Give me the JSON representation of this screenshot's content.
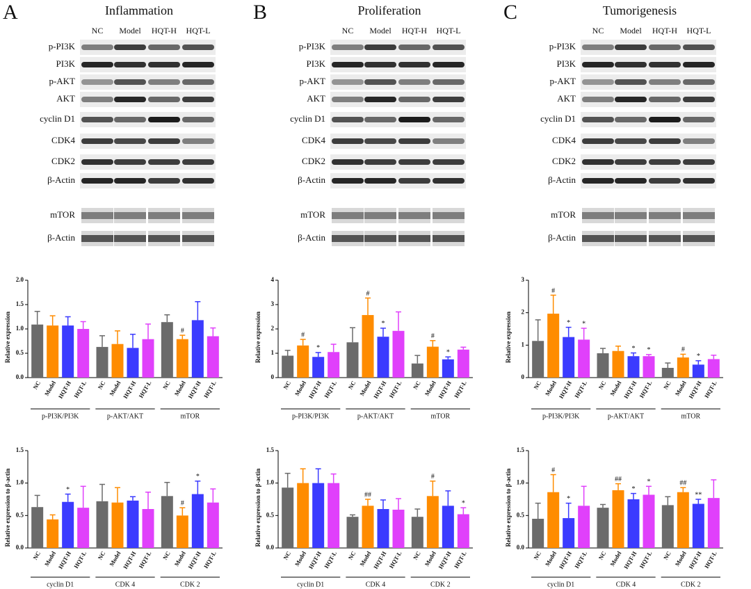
{
  "panels": [
    {
      "letter": "A",
      "title": "Inflammation",
      "lanes": [
        "NC",
        "Model",
        "HQT-H",
        "HQT-L"
      ],
      "blots": [
        "p-PI3K",
        "PI3K",
        "p-AKT",
        "AKT",
        "cyclin D1",
        "CDK4",
        "CDK2",
        "β-Actin"
      ],
      "blots2": [
        "mTOR",
        "β-Actin"
      ]
    },
    {
      "letter": "B",
      "title": "Proliferation",
      "lanes": [
        "NC",
        "Model",
        "HQT-H",
        "HQT-L"
      ],
      "blots": [
        "p-PI3K",
        "PI3K",
        "p-AKT",
        "AKT",
        "cyclin D1",
        "CDK4",
        "CDK2",
        "β-Actin"
      ],
      "blots2": [
        "mTOR",
        "β-Actin"
      ]
    },
    {
      "letter": "C",
      "title": "Tumorigenesis",
      "lanes": [
        "NC",
        "Model",
        "HQT-H",
        "HQT-L"
      ],
      "blots": [
        "p-PI3K",
        "PI3K",
        "p-AKT",
        "AKT",
        "cyclin D1",
        "CDK4",
        "CDK2",
        "β-Actin"
      ],
      "blots2": [
        "mTOR",
        "β-Actin"
      ]
    }
  ],
  "chart_data": [
    {
      "type": "bar",
      "y_label": "Relative expression",
      "categories": [
        "p-PI3K/PI3K",
        "p-AKT/AKT",
        "mTOR"
      ],
      "ylim": [
        0,
        2
      ],
      "yticks": [
        {
          "value": 0,
          "label": "0.0"
        },
        0.5,
        {
          "value": 1,
          "label": "1.0"
        },
        1.5,
        {
          "value": 2,
          "label": "2.0"
        }
      ],
      "series": [
        {
          "name": "NC",
          "color": "#6b6b6b",
          "values": [
            1.09,
            0.63,
            1.14
          ],
          "errors": [
            0.27,
            0.23,
            0.15
          ],
          "annotations": [
            null,
            null,
            null
          ]
        },
        {
          "name": "Model",
          "color": "#ff8c00",
          "values": [
            1.07,
            0.69,
            0.79
          ],
          "errors": [
            0.2,
            0.27,
            0.08
          ],
          "annotations": [
            null,
            null,
            "#"
          ]
        },
        {
          "name": "HQT-H",
          "color": "#3b3bff",
          "values": [
            1.07,
            0.61,
            1.18
          ],
          "errors": [
            0.18,
            0.28,
            0.38
          ],
          "annotations": [
            null,
            null,
            null
          ]
        },
        {
          "name": "HQT-L",
          "color": "#e040fb",
          "values": [
            1.0,
            0.79,
            0.85
          ],
          "errors": [
            0.15,
            0.31,
            0.17
          ],
          "annotations": [
            null,
            null,
            null
          ]
        }
      ]
    },
    {
      "type": "bar",
      "y_label": "Relative expression to β-actin",
      "categories": [
        "cyclin D1",
        "CDK 4",
        "CDK 2"
      ],
      "ylim": [
        0,
        1.5
      ],
      "yticks": [
        {
          "value": 0,
          "label": "0.0"
        },
        0.5,
        {
          "value": 1,
          "label": "1.0"
        },
        1.5
      ],
      "series": [
        {
          "name": "NC",
          "color": "#6b6b6b",
          "values": [
            0.63,
            0.72,
            0.8
          ],
          "errors": [
            0.18,
            0.26,
            0.21
          ],
          "annotations": [
            null,
            null,
            null
          ]
        },
        {
          "name": "Model",
          "color": "#ff8c00",
          "values": [
            0.44,
            0.7,
            0.5
          ],
          "errors": [
            0.07,
            0.23,
            0.12
          ],
          "annotations": [
            null,
            null,
            "#"
          ]
        },
        {
          "name": "HQT-H",
          "color": "#3b3bff",
          "values": [
            0.71,
            0.73,
            0.83
          ],
          "errors": [
            0.12,
            0.06,
            0.2
          ],
          "annotations": [
            "*",
            null,
            "*"
          ]
        },
        {
          "name": "HQT-L",
          "color": "#e040fb",
          "values": [
            0.62,
            0.6,
            0.7
          ],
          "errors": [
            0.33,
            0.26,
            0.21
          ],
          "annotations": [
            null,
            null,
            null
          ]
        }
      ]
    },
    {
      "type": "bar",
      "y_label": "Relative expression",
      "categories": [
        "p-PI3K/PI3K",
        "p-AKT/AKT",
        "mTOR"
      ],
      "ylim": [
        0,
        4
      ],
      "yticks": [
        0,
        1,
        2,
        3,
        4
      ],
      "series": [
        {
          "name": "NC",
          "color": "#6b6b6b",
          "values": [
            0.9,
            1.45,
            0.58
          ],
          "errors": [
            0.22,
            0.6,
            0.33
          ],
          "annotations": [
            null,
            null,
            null
          ]
        },
        {
          "name": "Model",
          "color": "#ff8c00",
          "values": [
            1.32,
            2.57,
            1.27
          ],
          "errors": [
            0.25,
            0.7,
            0.25
          ],
          "annotations": [
            "#",
            "#",
            "#"
          ]
        },
        {
          "name": "HQT-H",
          "color": "#3b3bff",
          "values": [
            0.85,
            1.68,
            0.75
          ],
          "errors": [
            0.18,
            0.35,
            0.1
          ],
          "annotations": [
            "*",
            "*",
            "*"
          ]
        },
        {
          "name": "HQT-L",
          "color": "#e040fb",
          "values": [
            1.05,
            1.92,
            1.15
          ],
          "errors": [
            0.32,
            0.78,
            0.1
          ],
          "annotations": [
            null,
            null,
            null
          ]
        }
      ]
    },
    {
      "type": "bar",
      "y_label": "Relative expression to β-actin",
      "categories": [
        "cyclin D1",
        "CDK 4",
        "CDK 2"
      ],
      "ylim": [
        0,
        1.5
      ],
      "yticks": [
        {
          "value": 0,
          "label": "0.0"
        },
        0.5,
        {
          "value": 1,
          "label": "1.0"
        },
        1.5
      ],
      "series": [
        {
          "name": "NC",
          "color": "#6b6b6b",
          "values": [
            0.93,
            0.48,
            0.48
          ],
          "errors": [
            0.22,
            0.03,
            0.12
          ],
          "annotations": [
            null,
            null,
            null
          ]
        },
        {
          "name": "Model",
          "color": "#ff8c00",
          "values": [
            1.0,
            0.65,
            0.8
          ],
          "errors": [
            0.22,
            0.1,
            0.23
          ],
          "annotations": [
            null,
            "##",
            "#"
          ]
        },
        {
          "name": "HQT-H",
          "color": "#3b3bff",
          "values": [
            1.0,
            0.6,
            0.65
          ],
          "errors": [
            0.22,
            0.14,
            0.23
          ],
          "annotations": [
            null,
            null,
            null
          ]
        },
        {
          "name": "HQT-L",
          "color": "#e040fb",
          "values": [
            1.0,
            0.59,
            0.52
          ],
          "errors": [
            0.14,
            0.17,
            0.1
          ],
          "annotations": [
            null,
            null,
            "*"
          ]
        }
      ]
    },
    {
      "type": "bar",
      "y_label": "Relative expression",
      "categories": [
        "p-PI3K/PI3K",
        "p-AKT/AKT",
        "mTOR"
      ],
      "ylim": [
        0,
        3
      ],
      "yticks": [
        0,
        1,
        2,
        3
      ],
      "series": [
        {
          "name": "NC",
          "color": "#6b6b6b",
          "values": [
            1.13,
            0.75,
            0.3
          ],
          "errors": [
            0.65,
            0.15,
            0.15
          ],
          "annotations": [
            null,
            null,
            null
          ]
        },
        {
          "name": "Model",
          "color": "#ff8c00",
          "values": [
            1.97,
            0.82,
            0.62
          ],
          "errors": [
            0.57,
            0.15,
            0.1
          ],
          "annotations": [
            "#",
            null,
            "#"
          ]
        },
        {
          "name": "HQT-H",
          "color": "#3b3bff",
          "values": [
            1.25,
            0.66,
            0.4
          ],
          "errors": [
            0.3,
            0.1,
            0.12
          ],
          "annotations": [
            "*",
            "*",
            "*"
          ]
        },
        {
          "name": "HQT-L",
          "color": "#e040fb",
          "values": [
            1.17,
            0.66,
            0.57
          ],
          "errors": [
            0.35,
            0.05,
            0.12
          ],
          "annotations": [
            "*",
            "*",
            null
          ]
        }
      ]
    },
    {
      "type": "bar",
      "y_label": "Relative expression to β-actin",
      "categories": [
        "cyclin D1",
        "CDK 4",
        "CDK 2"
      ],
      "ylim": [
        0,
        1.5
      ],
      "yticks": [
        {
          "value": 0,
          "label": "0.0"
        },
        0.5,
        {
          "value": 1,
          "label": "1.0"
        },
        1.5
      ],
      "series": [
        {
          "name": "NC",
          "color": "#6b6b6b",
          "values": [
            0.45,
            0.62,
            0.66
          ],
          "errors": [
            0.24,
            0.05,
            0.13
          ],
          "annotations": [
            null,
            null,
            null
          ]
        },
        {
          "name": "Model",
          "color": "#ff8c00",
          "values": [
            0.86,
            0.89,
            0.86
          ],
          "errors": [
            0.27,
            0.1,
            0.07
          ],
          "annotations": [
            "#",
            "##",
            "##"
          ]
        },
        {
          "name": "HQT-H",
          "color": "#3b3bff",
          "values": [
            0.46,
            0.75,
            0.68
          ],
          "errors": [
            0.23,
            0.09,
            0.07
          ],
          "annotations": [
            "*",
            "*",
            "**"
          ]
        },
        {
          "name": "HQT-L",
          "color": "#e040fb",
          "values": [
            0.65,
            0.82,
            0.77
          ],
          "errors": [
            0.3,
            0.13,
            0.28
          ],
          "annotations": [
            null,
            "*",
            null
          ]
        }
      ]
    }
  ]
}
